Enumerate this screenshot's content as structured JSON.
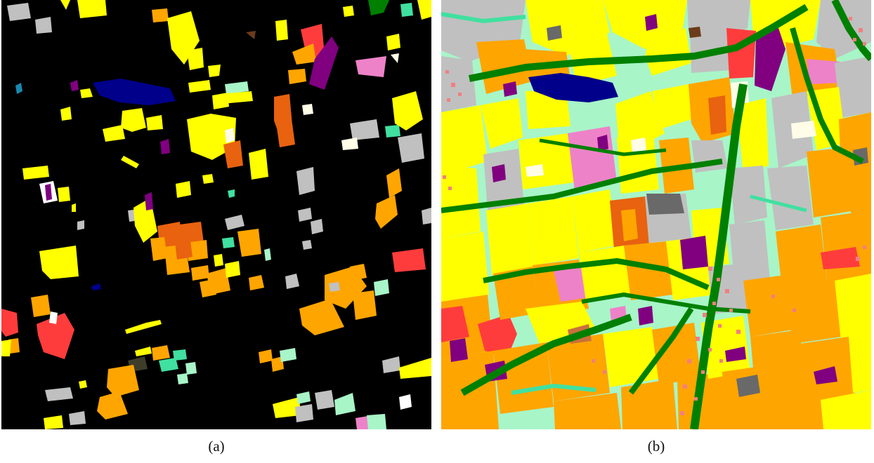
{
  "figure": {
    "panel_a": {
      "caption": "(a)",
      "background_color": "#000000"
    },
    "panel_b": {
      "caption": "(b)",
      "background_color": "#a8f5c8"
    }
  },
  "palette": {
    "yellow": "#ffff00",
    "orange": "#ffa500",
    "dark_orange": "#e8620f",
    "purple": "#800080",
    "pink": "#ee82c8",
    "red": "#ff3c3c",
    "navy": "#00008b",
    "forest_green": "#008000",
    "light_gray": "#c0c0c0",
    "dark_gray": "#696969",
    "mint": "#a8f5c8",
    "aquamarine": "#40e0a0",
    "cream": "#fffde8",
    "brown": "#6b3b1b",
    "teal": "#1a88b0",
    "salmon": "#f08080"
  }
}
